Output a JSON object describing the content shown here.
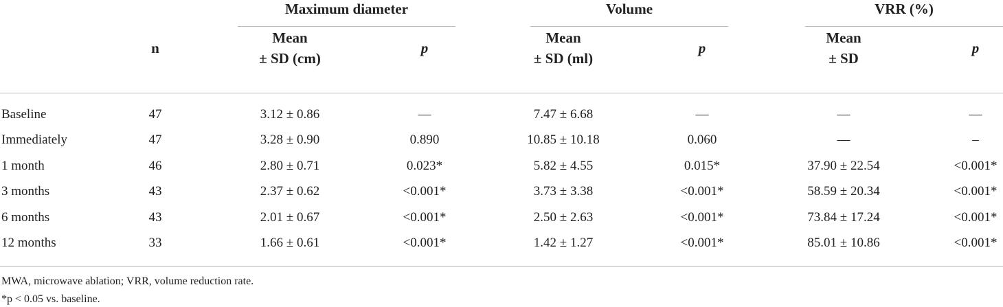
{
  "table": {
    "groups": [
      "Maximum diameter",
      "Volume",
      "VRR (%)"
    ],
    "columns": [
      [
        "n"
      ],
      [
        "Mean",
        "± SD (cm)"
      ],
      [
        "p"
      ],
      [
        "Mean",
        "± SD (ml)"
      ],
      [
        "p"
      ],
      [
        "Mean",
        "± SD"
      ],
      [
        "p"
      ]
    ],
    "rows": [
      [
        "Baseline",
        "47",
        "3.12 ± 0.86",
        "—",
        "7.47 ± 6.68",
        "—",
        "—",
        "—"
      ],
      [
        "Immediately",
        "47",
        "3.28 ± 0.90",
        "0.890",
        "10.85 ± 10.18",
        "0.060",
        "—",
        "–"
      ],
      [
        "1 month",
        "46",
        "2.80 ± 0.71",
        "0.023*",
        "5.82 ± 4.55",
        "0.015*",
        "37.90 ± 22.54",
        "<0.001*"
      ],
      [
        "3 months",
        "43",
        "2.37 ± 0.62",
        "<0.001*",
        "3.73 ± 3.38",
        "<0.001*",
        "58.59 ± 20.34",
        "<0.001*"
      ],
      [
        "6 months",
        "43",
        "2.01 ± 0.67",
        "<0.001*",
        "2.50 ± 2.63",
        "<0.001*",
        "73.84 ± 17.24",
        "<0.001*"
      ],
      [
        "12 months",
        "33",
        "1.66 ± 0.61",
        "<0.001*",
        "1.42 ± 1.27",
        "<0.001*",
        "85.01 ± 10.86",
        "<0.001*"
      ]
    ]
  },
  "footnotes": [
    "MWA, microwave ablation; VRR, volume reduction rate.",
    "*p < 0.05 vs. baseline."
  ]
}
